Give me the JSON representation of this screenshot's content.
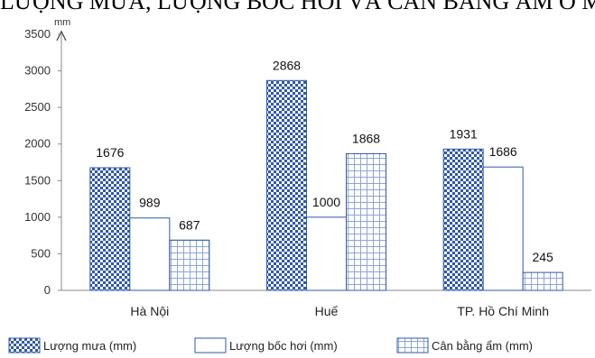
{
  "chart_data": {
    "type": "bar",
    "title": "LƯỢNG MƯA, LƯỢNG BỐC HƠI VÀ CÂN BẰNG ẨM Ở MỘT SỐ ĐỊA ĐIỂM",
    "ylabel": "mm",
    "xlabel": "",
    "ylim": [
      0,
      3500
    ],
    "yticks": [
      0,
      500,
      1000,
      1500,
      2000,
      2500,
      3000,
      3500
    ],
    "categories": [
      "Hà Nội",
      "Huế",
      "TP. Hồ Chí Minh"
    ],
    "series": [
      {
        "name": "Lượng mưa (mm)",
        "values": [
          1676,
          2868,
          1931
        ],
        "pattern": "checker",
        "color": "#3a5fa6"
      },
      {
        "name": "Lượng bốc hơi (mm)",
        "values": [
          989,
          1000,
          1686
        ],
        "pattern": "solid-white",
        "color": "#3a5fa6"
      },
      {
        "name": "Cân bằng ẩm (mm)",
        "values": [
          687,
          1868,
          245
        ],
        "pattern": "grid",
        "color": "#3a5fa6"
      }
    ],
    "legend_position": "bottom",
    "grid": false
  }
}
